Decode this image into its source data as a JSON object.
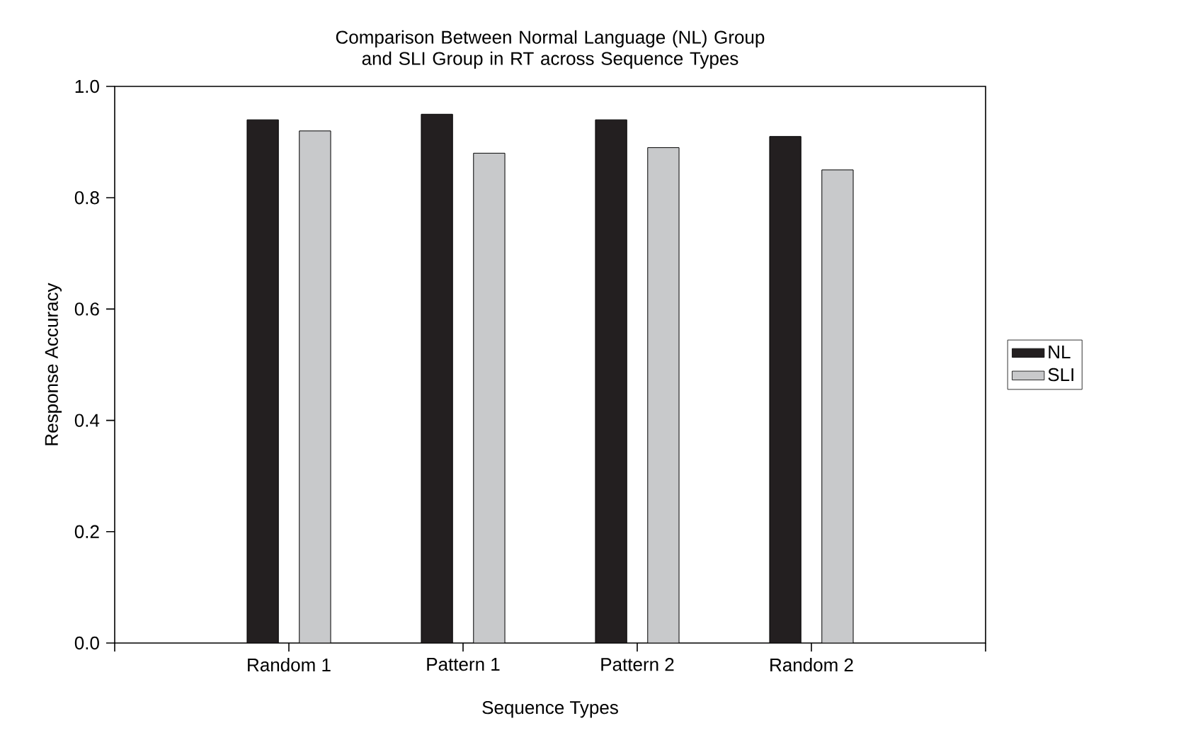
{
  "chart_data": {
    "type": "bar",
    "title": "Comparison Between Normal Language (NL) Group and SLI Group in RT across Sequence Types",
    "xlabel": "Sequence Types",
    "ylabel": "Response Accuracy",
    "categories": [
      "Random 1",
      "Pattern 1",
      "Pattern 2",
      "Random 2"
    ],
    "series": [
      {
        "name": "NL",
        "color": "#231f20",
        "values": [
          0.94,
          0.95,
          0.94,
          0.91
        ]
      },
      {
        "name": "SLI",
        "color": "#c8c9cb",
        "values": [
          0.92,
          0.88,
          0.89,
          0.85
        ]
      }
    ],
    "ylim": [
      0,
      1
    ],
    "yticks": [
      {
        "value": 0,
        "label": "0.0"
      },
      0.2,
      0.4,
      0.6,
      0.8,
      {
        "value": 1,
        "label": "1.0"
      }
    ],
    "legend": "right",
    "grid": false
  }
}
